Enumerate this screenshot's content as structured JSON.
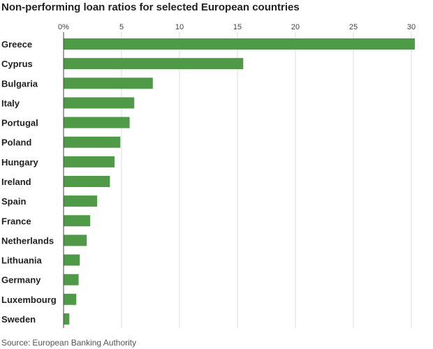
{
  "chart_data": {
    "type": "bar",
    "orientation": "horizontal",
    "title": "Non-performing loan ratios for selected European countries",
    "categories": [
      "Greece",
      "Cyprus",
      "Bulgaria",
      "Italy",
      "Portugal",
      "Poland",
      "Hungary",
      "Ireland",
      "Spain",
      "France",
      "Netherlands",
      "Lithuania",
      "Germany",
      "Luxembourg",
      "Sweden"
    ],
    "values": [
      30.3,
      15.5,
      7.7,
      6.1,
      5.7,
      4.9,
      4.4,
      4.0,
      2.9,
      2.3,
      2.0,
      1.4,
      1.3,
      1.1,
      0.5
    ],
    "xlim": [
      0,
      30
    ],
    "x_ticks": [
      0,
      5,
      10,
      15,
      20,
      25,
      30
    ],
    "x_tick_labels": [
      "0%",
      "5",
      "10",
      "15",
      "20",
      "25",
      "30"
    ],
    "xaxis_position": "top",
    "grid": true,
    "bar_color": "#4e9a47",
    "grid_color": "#dddddd",
    "axis_color": "#444444"
  },
  "source": {
    "label": "Source:",
    "name": "European Banking Authority"
  }
}
